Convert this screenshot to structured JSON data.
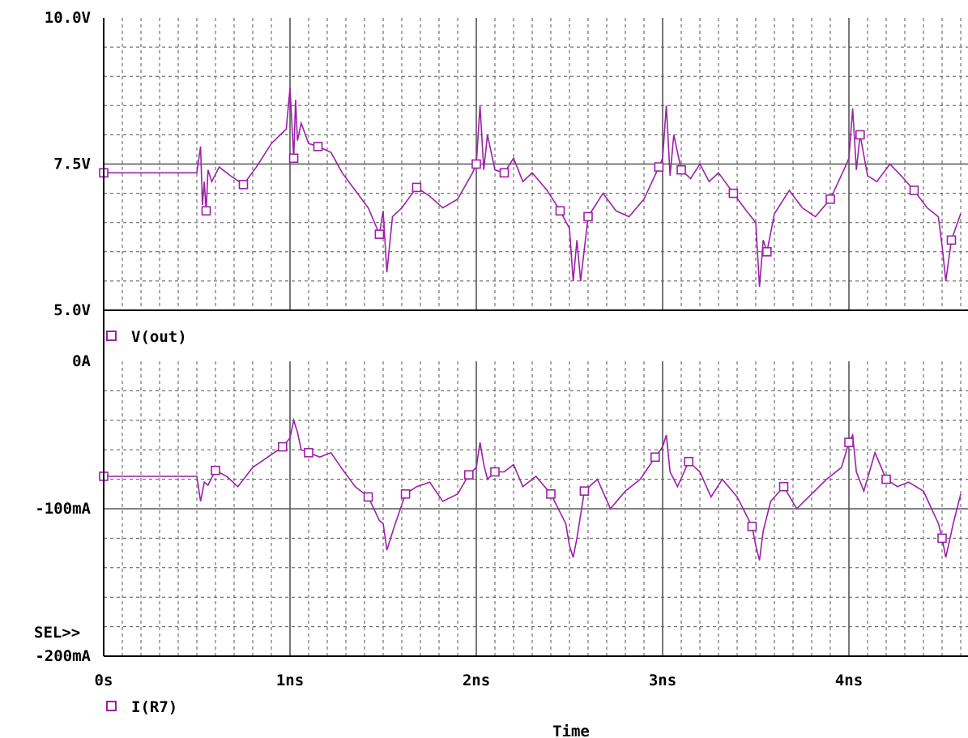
{
  "chart_data": [
    {
      "type": "line",
      "ylim": [
        5.0,
        10.0
      ],
      "xlim": [
        0,
        4.6
      ],
      "grid": true,
      "y_ticks": [
        "5.0V",
        "7.5V",
        "10.0V"
      ],
      "y_tick_values": [
        5.0,
        7.5,
        10.0
      ],
      "series": [
        {
          "name": "V(out)",
          "color": "#9c1fa8",
          "marker": "square",
          "x": [
            0,
            0.5,
            0.52,
            0.53,
            0.54,
            0.55,
            0.56,
            0.58,
            0.62,
            0.68,
            0.75,
            0.82,
            0.9,
            0.98,
            1.0,
            1.02,
            1.03,
            1.04,
            1.06,
            1.1,
            1.15,
            1.22,
            1.28,
            1.35,
            1.42,
            1.48,
            1.5,
            1.52,
            1.55,
            1.6,
            1.68,
            1.75,
            1.82,
            1.9,
            1.98,
            2.0,
            2.02,
            2.04,
            2.06,
            2.1,
            2.15,
            2.2,
            2.25,
            2.3,
            2.38,
            2.45,
            2.5,
            2.52,
            2.54,
            2.56,
            2.6,
            2.68,
            2.75,
            2.82,
            2.9,
            2.98,
            3.0,
            3.02,
            3.04,
            3.06,
            3.1,
            3.15,
            3.2,
            3.25,
            3.3,
            3.38,
            3.45,
            3.5,
            3.52,
            3.54,
            3.56,
            3.6,
            3.68,
            3.75,
            3.82,
            3.9,
            3.98,
            4.0,
            4.02,
            4.04,
            4.06,
            4.1,
            4.15,
            4.22,
            4.28,
            4.35,
            4.42,
            4.48,
            4.5,
            4.52,
            4.55,
            4.6
          ],
          "values": [
            7.35,
            7.35,
            7.8,
            6.8,
            7.2,
            6.7,
            7.4,
            7.2,
            7.45,
            7.3,
            7.15,
            7.45,
            7.85,
            8.1,
            8.8,
            7.6,
            8.6,
            7.9,
            8.2,
            7.85,
            7.8,
            7.7,
            7.35,
            7.05,
            6.75,
            6.3,
            6.7,
            5.65,
            6.6,
            6.75,
            7.1,
            6.95,
            6.75,
            6.9,
            7.35,
            7.5,
            8.5,
            7.4,
            8.0,
            7.4,
            7.35,
            7.6,
            7.2,
            7.35,
            7.05,
            6.7,
            6.4,
            5.5,
            6.2,
            5.5,
            6.6,
            7.0,
            6.7,
            6.6,
            6.9,
            7.45,
            7.6,
            8.5,
            7.3,
            8.0,
            7.4,
            7.25,
            7.5,
            7.2,
            7.35,
            7.0,
            6.7,
            6.5,
            5.4,
            6.2,
            6.0,
            6.65,
            7.05,
            6.75,
            6.6,
            6.9,
            7.45,
            7.6,
            8.45,
            7.4,
            8.0,
            7.3,
            7.2,
            7.5,
            7.3,
            7.05,
            6.75,
            6.6,
            6.1,
            5.5,
            6.2,
            6.65
          ]
        }
      ]
    },
    {
      "type": "line",
      "ylim": [
        -200,
        0
      ],
      "xlim": [
        0,
        4.6
      ],
      "grid": true,
      "y_ticks": [
        "-200mA",
        "-100mA",
        "0A"
      ],
      "y_tick_values": [
        -200,
        -100,
        0
      ],
      "x_ticks": [
        "0s",
        "1ns",
        "2ns",
        "3ns",
        "4ns"
      ],
      "x_tick_values": [
        0,
        1,
        2,
        3,
        4
      ],
      "xlabel": "Time",
      "series": [
        {
          "name": "I(R7)",
          "color": "#9c1fa8",
          "marker": "square",
          "x": [
            0,
            0.5,
            0.52,
            0.54,
            0.56,
            0.6,
            0.66,
            0.72,
            0.8,
            0.88,
            0.96,
            1.0,
            1.02,
            1.04,
            1.06,
            1.1,
            1.16,
            1.22,
            1.28,
            1.35,
            1.42,
            1.48,
            1.5,
            1.52,
            1.56,
            1.62,
            1.68,
            1.75,
            1.82,
            1.9,
            1.96,
            2.0,
            2.02,
            2.04,
            2.06,
            2.1,
            2.15,
            2.2,
            2.25,
            2.32,
            2.4,
            2.48,
            2.5,
            2.52,
            2.54,
            2.58,
            2.65,
            2.72,
            2.8,
            2.88,
            2.96,
            3.0,
            3.02,
            3.04,
            3.08,
            3.14,
            3.2,
            3.26,
            3.32,
            3.4,
            3.48,
            3.5,
            3.52,
            3.54,
            3.58,
            3.65,
            3.72,
            3.8,
            3.88,
            3.96,
            4.0,
            4.02,
            4.04,
            4.08,
            4.14,
            4.2,
            4.26,
            4.32,
            4.4,
            4.48,
            4.5,
            4.52,
            4.56,
            4.6
          ],
          "values": [
            -78,
            -78,
            -95,
            -82,
            -84,
            -74,
            -78,
            -85,
            -72,
            -65,
            -58,
            -52,
            -40,
            -48,
            -60,
            -62,
            -65,
            -62,
            -73,
            -85,
            -92,
            -108,
            -110,
            -128,
            -112,
            -90,
            -85,
            -82,
            -95,
            -90,
            -77,
            -72,
            -55,
            -70,
            -80,
            -75,
            -75,
            -70,
            -85,
            -78,
            -90,
            -110,
            -125,
            -133,
            -120,
            -88,
            -80,
            -100,
            -88,
            -80,
            -65,
            -58,
            -50,
            -75,
            -85,
            -68,
            -75,
            -92,
            -80,
            -92,
            -112,
            -125,
            -135,
            -115,
            -95,
            -85,
            -100,
            -90,
            -80,
            -72,
            -55,
            -50,
            -75,
            -88,
            -62,
            -80,
            -85,
            -82,
            -88,
            -110,
            -120,
            -133,
            -110,
            -90
          ]
        }
      ]
    }
  ],
  "labels": {
    "sel": "SEL>>"
  }
}
